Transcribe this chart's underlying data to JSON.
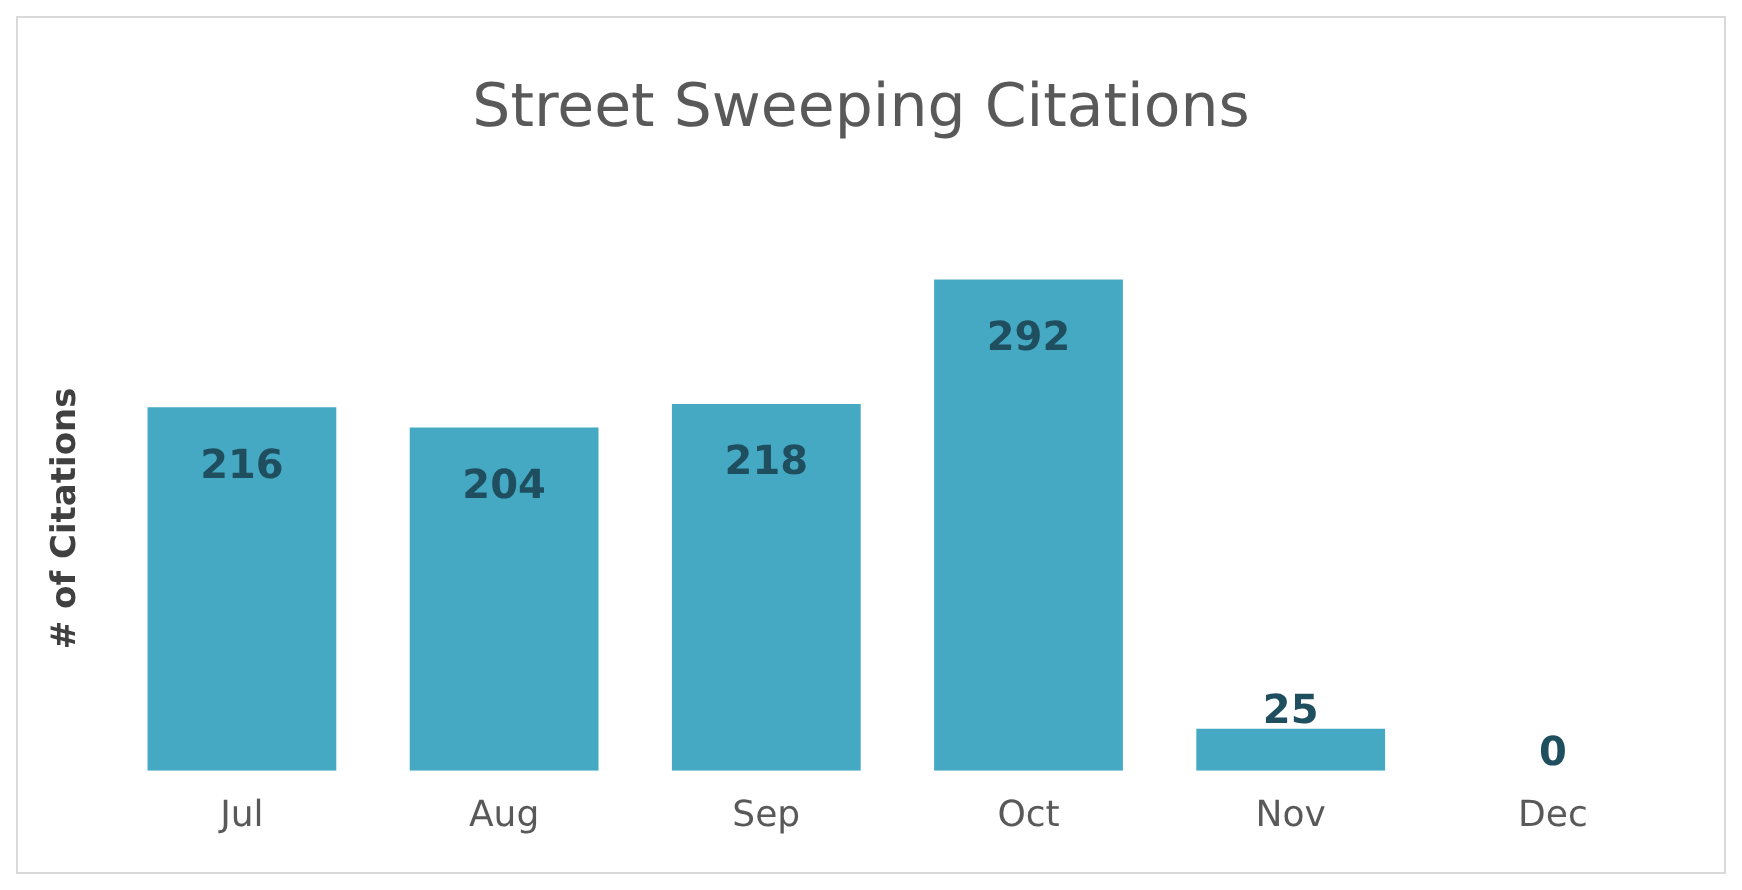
{
  "chart_data": {
    "type": "bar",
    "title": "Street Sweeping Citations",
    "ylabel": "# of Citations",
    "categories": [
      "Jul",
      "Aug",
      "Sep",
      "Oct",
      "Nov",
      "Dec"
    ],
    "values": [
      216,
      204,
      218,
      292,
      25,
      0
    ],
    "color": "#46a9c4",
    "data_labels": true,
    "grid": false,
    "legend": false
  }
}
